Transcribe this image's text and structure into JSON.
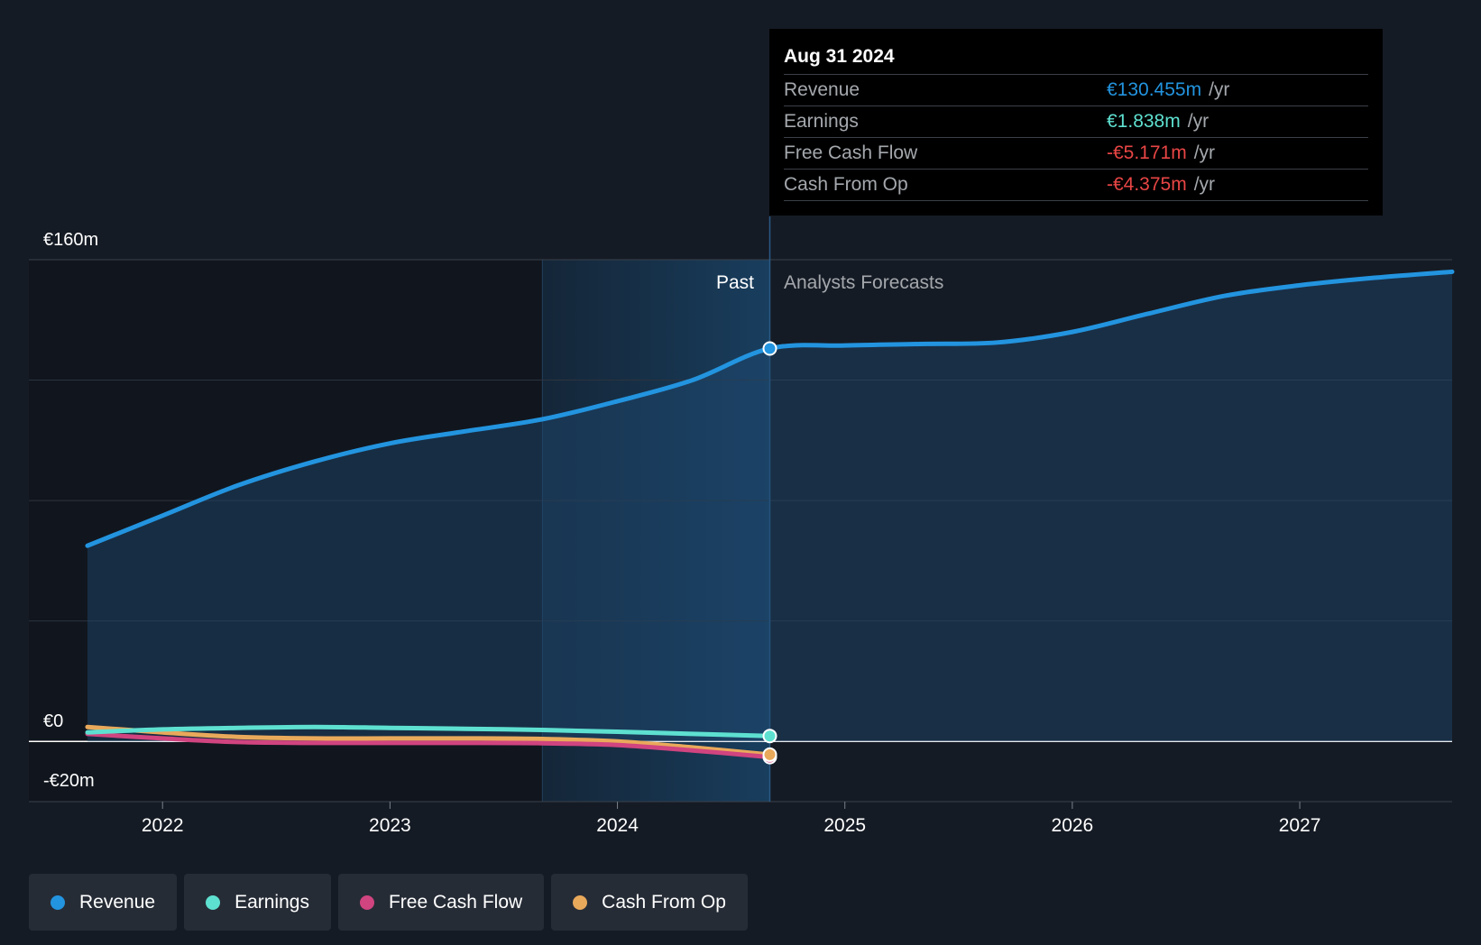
{
  "colors": {
    "background": "#151b24",
    "revenue": "#2394df",
    "earnings": "#5ee0d0",
    "free_cash_flow": "#d0447f",
    "cash_from_op": "#e9a95b",
    "negative": "#e84545"
  },
  "tooltip": {
    "date": "Aug 31 2024",
    "rows": [
      {
        "label": "Revenue",
        "value": "€130.455m",
        "unit": "/yr",
        "color": "#2394df"
      },
      {
        "label": "Earnings",
        "value": "€1.838m",
        "unit": "/yr",
        "color": "#5ee0d0"
      },
      {
        "label": "Free Cash Flow",
        "value": "-€5.171m",
        "unit": "/yr",
        "color": "#e84545"
      },
      {
        "label": "Cash From Op",
        "value": "-€4.375m",
        "unit": "/yr",
        "color": "#e84545"
      }
    ]
  },
  "chart_data": {
    "type": "line",
    "y_labels": {
      "top": "€160m",
      "zero": "€0",
      "bottom": "-€20m"
    },
    "ylim": [
      -20,
      160
    ],
    "xlim": [
      2021.67,
      2027.67
    ],
    "past_label": "Past",
    "forecast_label": "Analysts Forecasts",
    "past_shade_start": 2023.67,
    "past_end": 2024.67,
    "x_ticks": [
      2022,
      2023,
      2024,
      2025,
      2026,
      2027
    ],
    "grid": true,
    "legend_position": "bottom-left",
    "series": [
      {
        "name": "Revenue",
        "color": "#2394df",
        "x": [
          2021.67,
          2022.0,
          2022.33,
          2022.67,
          2023.0,
          2023.33,
          2023.67,
          2024.0,
          2024.33,
          2024.67,
          2025.0,
          2025.33,
          2025.67,
          2026.0,
          2026.33,
          2026.67,
          2027.0,
          2027.33,
          2027.67
        ],
        "y": [
          65,
          75,
          85,
          93,
          99,
          103,
          107,
          113,
          120,
          130.5,
          131.5,
          132,
          132.5,
          136,
          142,
          148,
          151.5,
          154,
          156
        ]
      },
      {
        "name": "Earnings",
        "color": "#5ee0d0",
        "x": [
          2021.67,
          2022.0,
          2022.33,
          2022.67,
          2023.0,
          2023.33,
          2023.67,
          2024.0,
          2024.33,
          2024.67
        ],
        "y": [
          3,
          4,
          4.5,
          4.8,
          4.5,
          4.2,
          3.8,
          3.2,
          2.5,
          1.8
        ]
      },
      {
        "name": "Free Cash Flow",
        "color": "#d0447f",
        "x": [
          2021.67,
          2022.0,
          2022.33,
          2022.67,
          2023.0,
          2023.33,
          2023.67,
          2024.0,
          2024.33,
          2024.67
        ],
        "y": [
          2.5,
          1,
          -0.2,
          -0.5,
          -0.5,
          -0.5,
          -0.6,
          -1.2,
          -3,
          -5.2
        ]
      },
      {
        "name": "Cash From Op",
        "color": "#e9a95b",
        "x": [
          2021.67,
          2022.0,
          2022.33,
          2022.67,
          2023.0,
          2023.33,
          2023.67,
          2024.0,
          2024.33,
          2024.67
        ],
        "y": [
          4.8,
          3,
          1.5,
          1,
          1,
          1,
          0.8,
          0,
          -2,
          -4.4
        ]
      }
    ]
  },
  "legend": [
    {
      "label": "Revenue",
      "color": "#2394df"
    },
    {
      "label": "Earnings",
      "color": "#5ee0d0"
    },
    {
      "label": "Free Cash Flow",
      "color": "#d0447f"
    },
    {
      "label": "Cash From Op",
      "color": "#e9a95b"
    }
  ]
}
